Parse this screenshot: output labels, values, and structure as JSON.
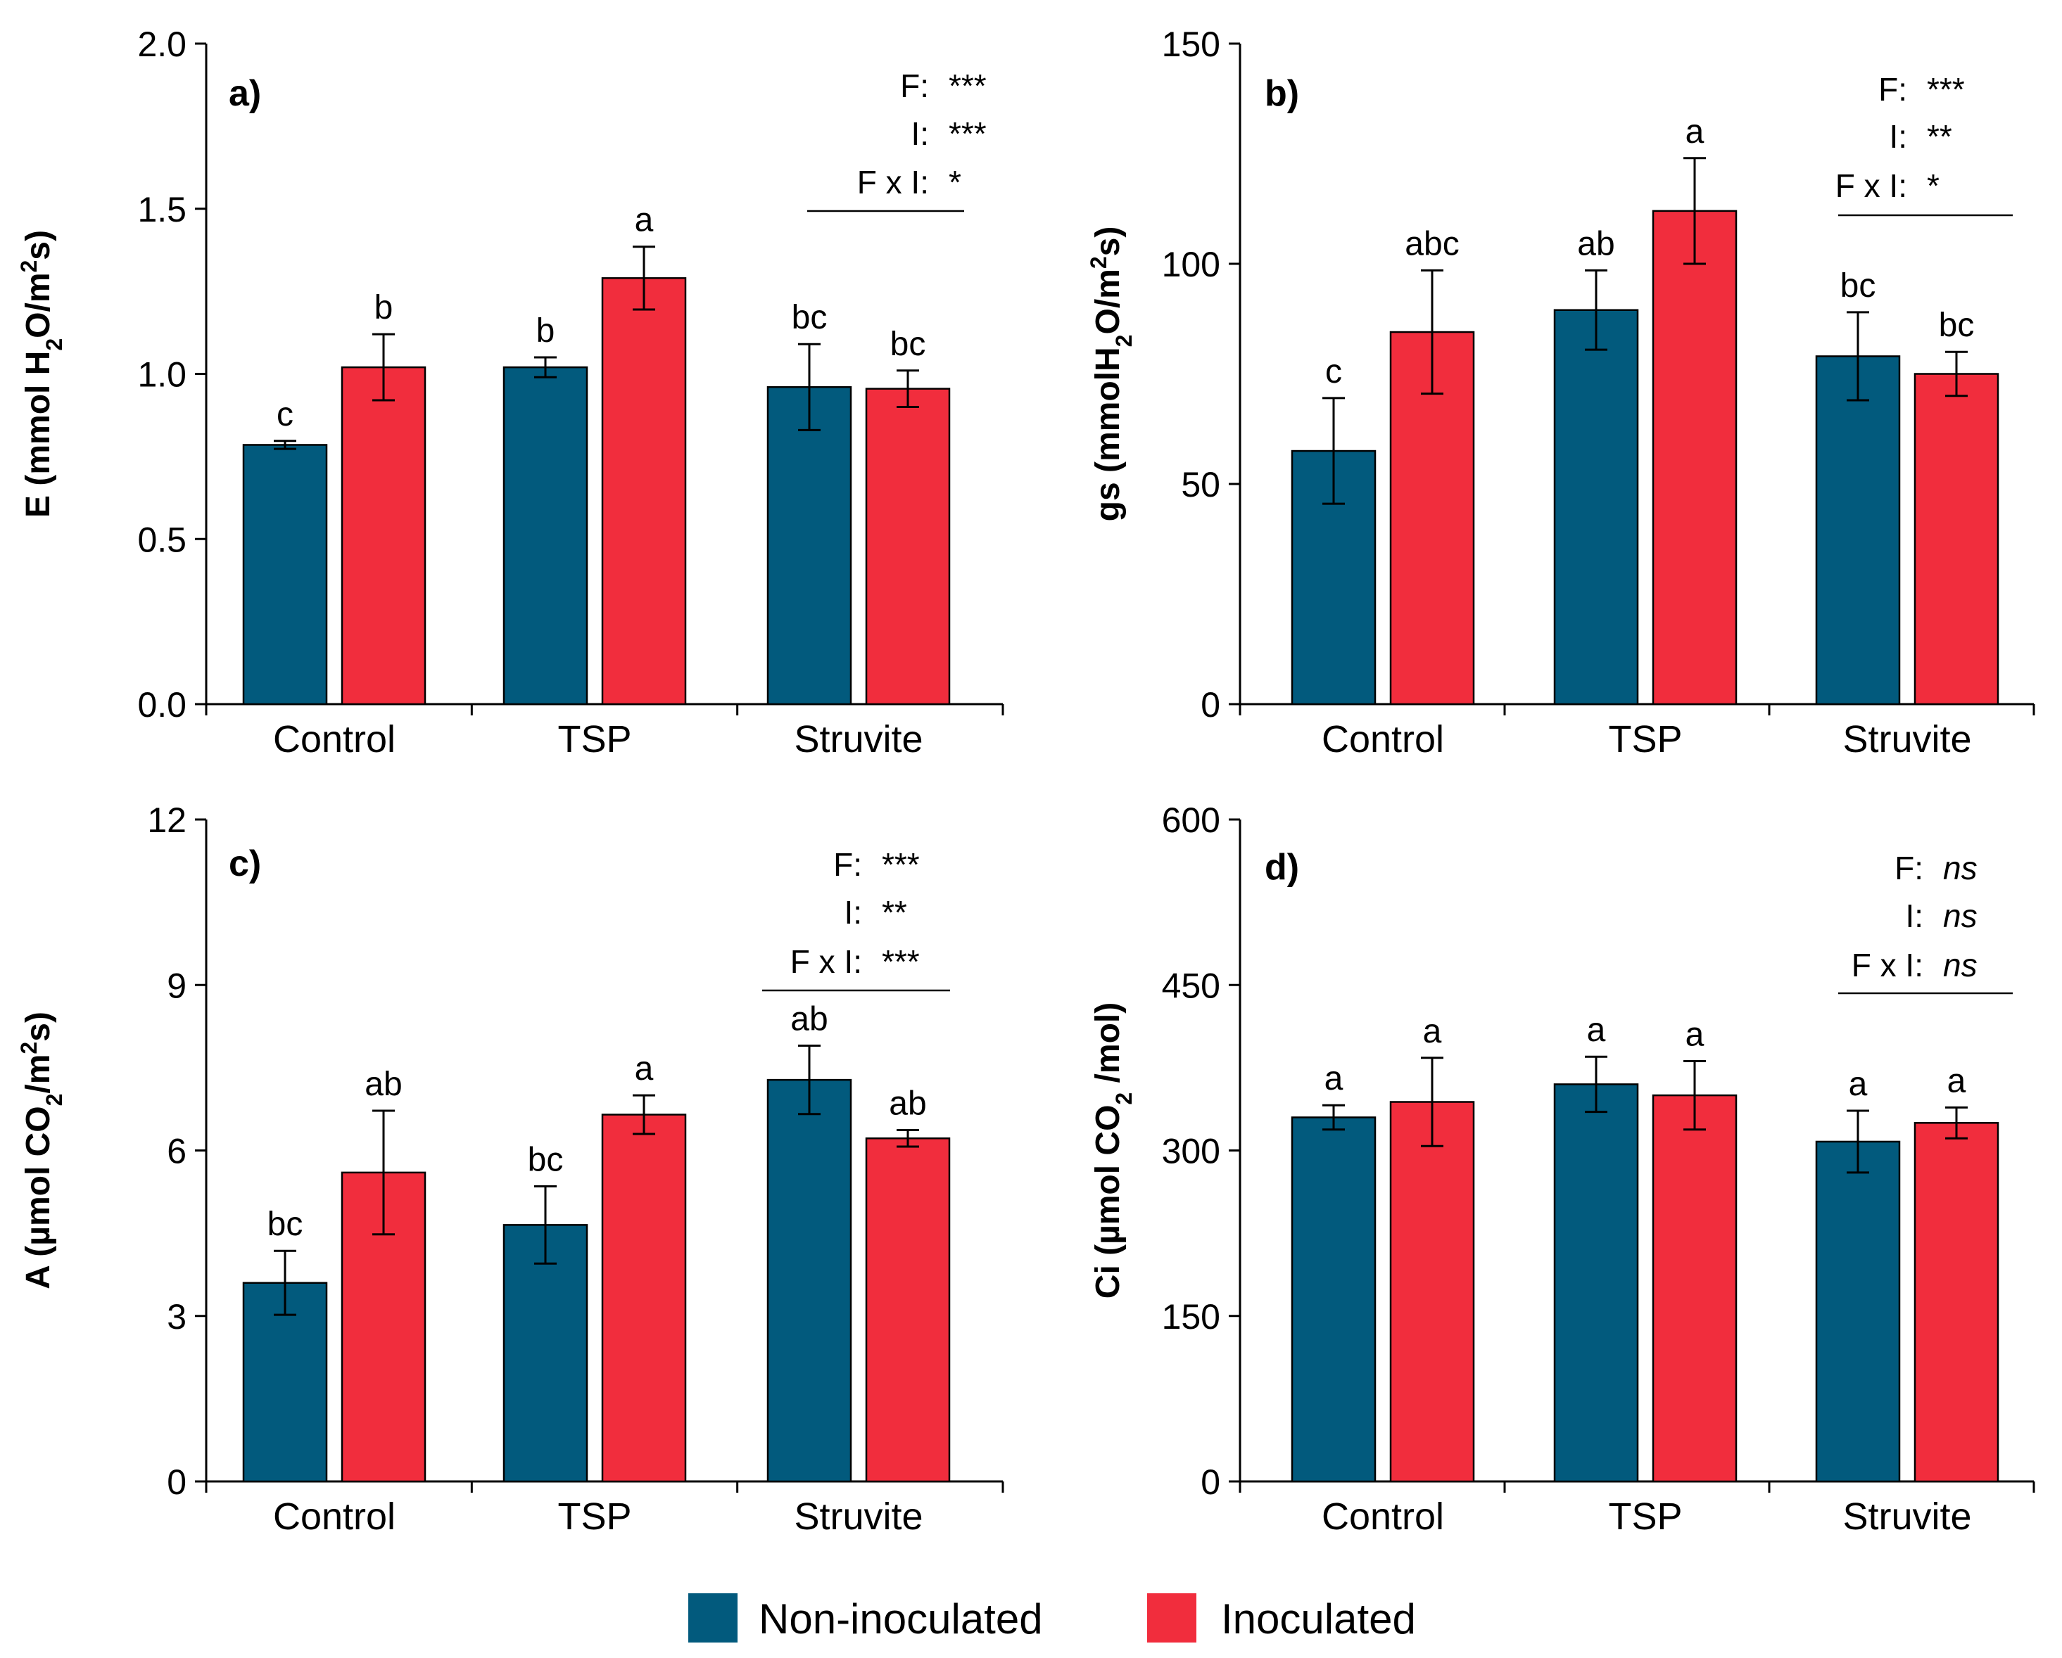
{
  "colors": {
    "non_inoculated": "#025a7d",
    "inoculated": "#f12d3d",
    "axis": "#000000"
  },
  "legend": [
    {
      "label": "Non-inoculated",
      "color": "#025a7d"
    },
    {
      "label": "Inoculated",
      "color": "#f12d3d"
    }
  ],
  "chart_data": [
    {
      "panel": "a)",
      "type": "bar",
      "ylabel_parts": [
        {
          "t": "E (mmol H"
        },
        {
          "t": "2",
          "sub": true
        },
        {
          "t": "O/m"
        },
        {
          "t": "2",
          "sup": true
        },
        {
          "t": "s)"
        }
      ],
      "ylim": [
        0,
        2.0
      ],
      "yticks": [
        "0.0",
        "0.5",
        "1.0",
        "1.5",
        "2.0"
      ],
      "ytick_values": [
        0,
        0.5,
        1.0,
        1.5,
        2.0
      ],
      "categories": [
        "Control",
        "TSP",
        "Struvite"
      ],
      "series": [
        {
          "name": "Non-inoculated",
          "values": [
            0.785,
            1.02,
            0.96
          ],
          "errors": [
            0.012,
            0.03,
            0.13
          ],
          "letters": [
            "c",
            "b",
            "bc"
          ]
        },
        {
          "name": "Inoculated",
          "values": [
            1.02,
            1.29,
            0.955
          ],
          "errors": [
            0.1,
            0.095,
            0.055
          ],
          "letters": [
            "b",
            "a",
            "bc"
          ]
        }
      ],
      "significance": [
        {
          "label": "F:",
          "value": "***"
        },
        {
          "label": "I:",
          "value": "***"
        },
        {
          "label": "F x I:",
          "value": "*"
        }
      ]
    },
    {
      "panel": "b)",
      "type": "bar",
      "ylabel_parts": [
        {
          "t": "gs (mmolH"
        },
        {
          "t": "2",
          "sub": true
        },
        {
          "t": "O/m"
        },
        {
          "t": "2",
          "sup": true
        },
        {
          "t": "s)"
        }
      ],
      "ylim": [
        0,
        150
      ],
      "yticks": [
        "0",
        "50",
        "100",
        "150"
      ],
      "ytick_values": [
        0,
        50,
        100,
        150
      ],
      "categories": [
        "Control",
        "TSP",
        "Struvite"
      ],
      "series": [
        {
          "name": "Non-inoculated",
          "values": [
            57.5,
            89.5,
            79
          ],
          "errors": [
            12,
            9,
            10
          ],
          "letters": [
            "c",
            "ab",
            "bc"
          ]
        },
        {
          "name": "Inoculated",
          "values": [
            84.5,
            112,
            75
          ],
          "errors": [
            14,
            12,
            5
          ],
          "letters": [
            "abc",
            "a",
            "bc"
          ]
        }
      ],
      "significance": [
        {
          "label": "F:",
          "value": "***"
        },
        {
          "label": "I:",
          "value": "**"
        },
        {
          "label": "F x I:",
          "value": "*"
        }
      ]
    },
    {
      "panel": "c)",
      "type": "bar",
      "ylabel_parts": [
        {
          "t": "A (µmol CO"
        },
        {
          "t": "2",
          "sub": true
        },
        {
          "t": "/m"
        },
        {
          "t": "2",
          "sup": true
        },
        {
          "t": "s)"
        }
      ],
      "ylim": [
        0,
        12
      ],
      "yticks": [
        "0",
        "3",
        "6",
        "9",
        "12"
      ],
      "ytick_values": [
        0,
        3,
        6,
        9,
        12
      ],
      "categories": [
        "Control",
        "TSP",
        "Struvite"
      ],
      "series": [
        {
          "name": "Non-inoculated",
          "values": [
            3.6,
            4.65,
            7.28
          ],
          "errors": [
            0.58,
            0.7,
            0.62
          ],
          "letters": [
            "bc",
            "bc",
            "ab"
          ]
        },
        {
          "name": "Inoculated",
          "values": [
            5.6,
            6.65,
            6.22
          ],
          "errors": [
            1.12,
            0.35,
            0.15
          ],
          "letters": [
            "ab",
            "a",
            "ab"
          ]
        }
      ],
      "significance": [
        {
          "label": "F:",
          "value": "***"
        },
        {
          "label": "I:",
          "value": "**"
        },
        {
          "label": "F x I:",
          "value": "***"
        }
      ]
    },
    {
      "panel": "d)",
      "type": "bar",
      "ylabel_parts": [
        {
          "t": "Ci (µmol CO"
        },
        {
          "t": "2",
          "sub": true
        },
        {
          "t": " /mol)"
        }
      ],
      "ylim": [
        0,
        600
      ],
      "yticks": [
        "0",
        "150",
        "300",
        "450",
        "600"
      ],
      "ytick_values": [
        0,
        150,
        300,
        450,
        600
      ],
      "categories": [
        "Control",
        "TSP",
        "Struvite"
      ],
      "series": [
        {
          "name": "Non-inoculated",
          "values": [
            330,
            360,
            308
          ],
          "errors": [
            11,
            25,
            28
          ],
          "letters": [
            "a",
            "a",
            "a"
          ]
        },
        {
          "name": "Inoculated",
          "values": [
            344,
            350,
            325
          ],
          "errors": [
            40,
            31,
            14
          ],
          "letters": [
            "a",
            "a",
            "a"
          ]
        }
      ],
      "significance": [
        {
          "label": "F:",
          "value": "ns",
          "italic": true
        },
        {
          "label": "I:",
          "value": "ns",
          "italic": true
        },
        {
          "label": "F x I:",
          "value": "ns",
          "italic": true
        }
      ]
    }
  ]
}
